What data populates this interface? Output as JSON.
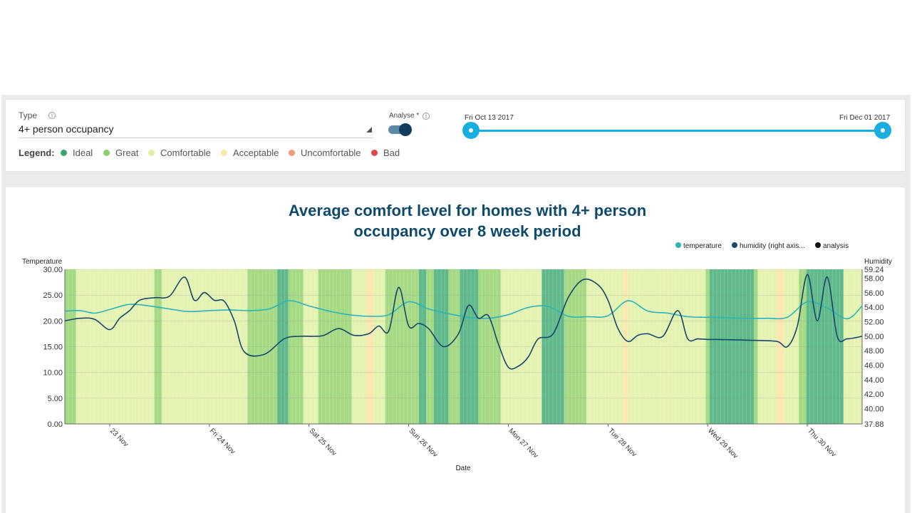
{
  "controls": {
    "type_label": "Type",
    "type_value": "4+ person occupancy",
    "legend_title": "Legend:",
    "legend": [
      {
        "label": "Ideal",
        "color": "#3aa66b"
      },
      {
        "label": "Great",
        "color": "#8ccf6c"
      },
      {
        "label": "Comfortable",
        "color": "#dff0a0"
      },
      {
        "label": "Acceptable",
        "color": "#fde6a6"
      },
      {
        "label": "Uncomfortable",
        "color": "#f59a78"
      },
      {
        "label": "Bad",
        "color": "#e04848"
      }
    ],
    "analyse_label": "Analyse *",
    "analyse_on": true,
    "range_start": "Fri Oct 13 2017",
    "range_end": "Fri Dec 01 2017"
  },
  "chart_data": {
    "type": "line",
    "title": "Average comfort level for homes with 4+ person occupancy over 8 week period",
    "xlabel": "Date",
    "ylabel": "Temperature",
    "y2label": "Humidity",
    "legend_position": "top-right",
    "legend": [
      "temperature",
      "humidity (right axis...",
      "analysis"
    ],
    "x_ticks": [
      "23 Nov",
      "Fri 24 Nov",
      "Sat 25 Nov",
      "Sun 26 Nov",
      "Mon 27 Nov",
      "Tue 28 Nov",
      "Wed 29 Nov",
      "Thu 30 Nov"
    ],
    "y_ticks": [
      "30.00",
      "25.00",
      "20.00",
      "15.00",
      "10.00",
      "5.00",
      "0.00"
    ],
    "y2_ticks": [
      "59.24",
      "58.00",
      "56.00",
      "54.00",
      "52.00",
      "50.00",
      "48.00",
      "46.00",
      "44.00",
      "42.00",
      "40.00",
      "37.88"
    ],
    "ylim": [
      0,
      30
    ],
    "y2lim": [
      37.88,
      59.24
    ],
    "x_range_days": [
      -0.45,
      7.55
    ],
    "colors": {
      "temperature": "#2bb5b8",
      "humidity": "#17476a",
      "analysis": "#111111"
    },
    "band_colors": {
      "ideal": "#5fb98a",
      "great": "#a5d984",
      "comfortable": "#e5f3b2",
      "acceptable": "#fde6b0"
    },
    "analysis_bands": "gggcccccccccccccccccccccggcccccccccccccccccccccccggggggggiiiggggccccgggggggggccccaacccgggggggggiiggiiiigggiiiiiggggggccccccccccciiiiiiggggggccccccccccacccccccccccccccccccccgiiiiiiiiiiiigcccccaaccccggiiiiiiiiiiccccc",
    "temperature": {
      "x": [
        -0.45,
        -0.3,
        -0.15,
        0.0,
        0.2,
        0.4,
        0.6,
        0.8,
        1.0,
        1.2,
        1.4,
        1.6,
        1.8,
        2.0,
        2.2,
        2.4,
        2.6,
        2.8,
        3.0,
        3.2,
        3.4,
        3.6,
        3.8,
        4.0,
        4.2,
        4.4,
        4.6,
        4.8,
        5.0,
        5.2,
        5.4,
        5.6,
        5.8,
        6.0,
        6.2,
        6.4,
        6.6,
        6.8,
        7.0,
        7.2,
        7.4,
        7.55
      ],
      "y": [
        21.9,
        22.0,
        21.5,
        22.2,
        23.2,
        22.9,
        22.3,
        21.8,
        22.0,
        22.1,
        22.0,
        22.3,
        23.9,
        22.9,
        21.9,
        21.2,
        20.9,
        21.2,
        23.7,
        22.3,
        21.4,
        20.7,
        20.5,
        21.2,
        22.6,
        22.8,
        20.9,
        20.8,
        21.0,
        23.9,
        21.9,
        21.5,
        20.8,
        20.7,
        20.6,
        20.5,
        20.5,
        20.7,
        23.7,
        22.5,
        20.4,
        22.9
      ]
    },
    "humidity": {
      "x": [
        -0.45,
        -0.3,
        -0.15,
        0.0,
        0.1,
        0.2,
        0.3,
        0.45,
        0.6,
        0.75,
        0.85,
        0.95,
        1.05,
        1.15,
        1.25,
        1.35,
        1.55,
        1.75,
        1.9,
        2.05,
        2.15,
        2.3,
        2.45,
        2.6,
        2.7,
        2.8,
        2.9,
        3.0,
        3.1,
        3.2,
        3.35,
        3.5,
        3.6,
        3.7,
        3.8,
        3.9,
        4.0,
        4.1,
        4.2,
        4.3,
        4.45,
        4.6,
        4.75,
        4.9,
        5.0,
        5.1,
        5.2,
        5.3,
        5.4,
        5.55,
        5.7,
        5.8,
        5.9,
        6.0,
        6.1,
        6.3,
        6.5,
        6.7,
        6.8,
        6.9,
        7.0,
        7.1,
        7.2,
        7.3,
        7.4,
        7.55
      ],
      "y": [
        20.0,
        20.5,
        20.3,
        18.3,
        20.5,
        22.0,
        24.0,
        24.5,
        24.8,
        28.5,
        24.0,
        25.5,
        24.0,
        23.8,
        20.0,
        14.0,
        13.5,
        16.5,
        17.0,
        17.0,
        17.2,
        18.5,
        17.2,
        17.5,
        19.0,
        18.0,
        26.5,
        19.0,
        19.5,
        18.5,
        15.0,
        17.5,
        23.0,
        20.5,
        21.0,
        15.5,
        11.0,
        11.2,
        13.0,
        16.5,
        17.5,
        24.5,
        28.0,
        27.0,
        24.0,
        18.5,
        16.0,
        17.2,
        17.5,
        17.0,
        22.0,
        16.5,
        16.5,
        16.4,
        16.4,
        16.3,
        16.2,
        16.0,
        15.0,
        19.0,
        29.0,
        20.0,
        28.5,
        17.0,
        16.5,
        17.0
      ]
    }
  }
}
